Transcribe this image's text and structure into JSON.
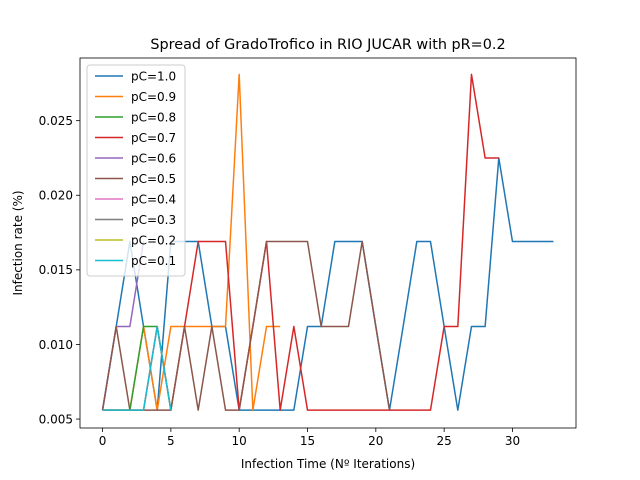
{
  "chart_data": {
    "type": "line",
    "title": "Spread of GradoTrofico in RIO JUCAR with pR=0.2",
    "xlabel": "Infection Time (Nº Iterations)",
    "ylabel": "Infection rate (%)",
    "xlim": [
      -1.65,
      34.65
    ],
    "ylim": [
      0.0044,
      0.0292
    ],
    "xticks": [
      0,
      5,
      10,
      15,
      20,
      25,
      30
    ],
    "xtick_labels": [
      "0",
      "5",
      "10",
      "15",
      "20",
      "25",
      "30"
    ],
    "yticks": [
      0.005,
      0.01,
      0.015,
      0.02,
      0.025
    ],
    "ytick_labels": [
      "0.005",
      "0.010",
      "0.015",
      "0.020",
      "0.025"
    ],
    "grid": false,
    "legend_position": "top-left",
    "series": [
      {
        "name": "pC=1.0",
        "color": "#1f77b4",
        "x": [
          0,
          1,
          2,
          3,
          4,
          5,
          6,
          7,
          8,
          9,
          10,
          11,
          12,
          13,
          14,
          15,
          16,
          17,
          18,
          19,
          20,
          21,
          22,
          23,
          24,
          25,
          26,
          27,
          28,
          29,
          30,
          31,
          32,
          33
        ],
        "y": [
          0.0056,
          0.0112,
          0.0169,
          0.0112,
          0.0056,
          0.0169,
          0.0169,
          0.0169,
          0.0112,
          0.0112,
          0.0056,
          0.0056,
          0.0056,
          0.0056,
          0.0056,
          0.0112,
          0.0112,
          0.0169,
          0.0169,
          0.0169,
          0.0112,
          0.0056,
          0.0112,
          0.0169,
          0.0169,
          0.0112,
          0.0056,
          0.0112,
          0.0112,
          0.0225,
          0.0169,
          0.0169,
          0.0169,
          0.0169
        ]
      },
      {
        "name": "pC=0.9",
        "color": "#ff7f0e",
        "x": [
          0,
          1,
          2,
          3,
          4,
          5,
          6,
          7,
          8,
          9,
          10,
          11,
          12,
          13
        ],
        "y": [
          0.0056,
          0.0056,
          0.0056,
          0.0112,
          0.0056,
          0.0112,
          0.0112,
          0.0112,
          0.0112,
          0.0112,
          0.0281,
          0.0056,
          0.0112,
          0.0112
        ]
      },
      {
        "name": "pC=0.8",
        "color": "#2ca02c",
        "x": [
          0,
          1,
          2,
          3,
          4,
          5
        ],
        "y": [
          0.0056,
          0.0056,
          0.0056,
          0.0112,
          0.0112,
          0.0056
        ]
      },
      {
        "name": "pC=0.7",
        "color": "#d62728",
        "x": [
          0,
          1,
          2,
          3,
          4,
          5,
          6,
          7,
          8,
          9,
          10,
          11,
          12,
          13,
          14,
          15,
          16,
          17,
          18,
          19,
          20,
          21,
          22,
          23,
          24,
          25,
          26,
          27,
          28,
          29
        ],
        "y": [
          0.0056,
          0.0056,
          0.0056,
          0.0056,
          0.0112,
          0.0056,
          0.0112,
          0.0169,
          0.0169,
          0.0169,
          0.0056,
          0.0112,
          0.0169,
          0.0056,
          0.0112,
          0.0056,
          0.0056,
          0.0056,
          0.0056,
          0.0056,
          0.0056,
          0.0056,
          0.0056,
          0.0056,
          0.0056,
          0.0112,
          0.0112,
          0.0281,
          0.0225,
          0.0225
        ]
      },
      {
        "name": "pC=0.6",
        "color": "#9467bd",
        "x": [
          0,
          1,
          2,
          3
        ],
        "y": [
          0.0056,
          0.0112,
          0.0112,
          0.0169
        ]
      },
      {
        "name": "pC=0.5",
        "color": "#8c564b",
        "x": [
          0,
          1,
          2,
          3,
          4,
          5,
          6,
          7,
          8,
          9,
          10,
          11,
          12,
          13,
          14,
          15,
          16,
          17,
          18,
          19,
          20,
          21
        ],
        "y": [
          0.0056,
          0.0112,
          0.0056,
          0.0056,
          0.0056,
          0.0056,
          0.0112,
          0.0056,
          0.0112,
          0.0056,
          0.0056,
          0.0112,
          0.0169,
          0.0169,
          0.0169,
          0.0169,
          0.0112,
          0.0112,
          0.0112,
          0.0169,
          0.0112,
          0.0056
        ]
      },
      {
        "name": "pC=0.4",
        "color": "#e377c2",
        "x": [
          0
        ],
        "y": [
          0.0056
        ]
      },
      {
        "name": "pC=0.3",
        "color": "#7f7f7f",
        "x": [
          0
        ],
        "y": [
          0.0056
        ]
      },
      {
        "name": "pC=0.2",
        "color": "#bcbd22",
        "x": [
          0
        ],
        "y": [
          0.0056
        ]
      },
      {
        "name": "pC=0.1",
        "color": "#17becf",
        "x": [
          0,
          1,
          2,
          3,
          4,
          5
        ],
        "y": [
          0.0056,
          0.0056,
          0.0056,
          0.0056,
          0.0112,
          0.0056
        ]
      }
    ]
  }
}
